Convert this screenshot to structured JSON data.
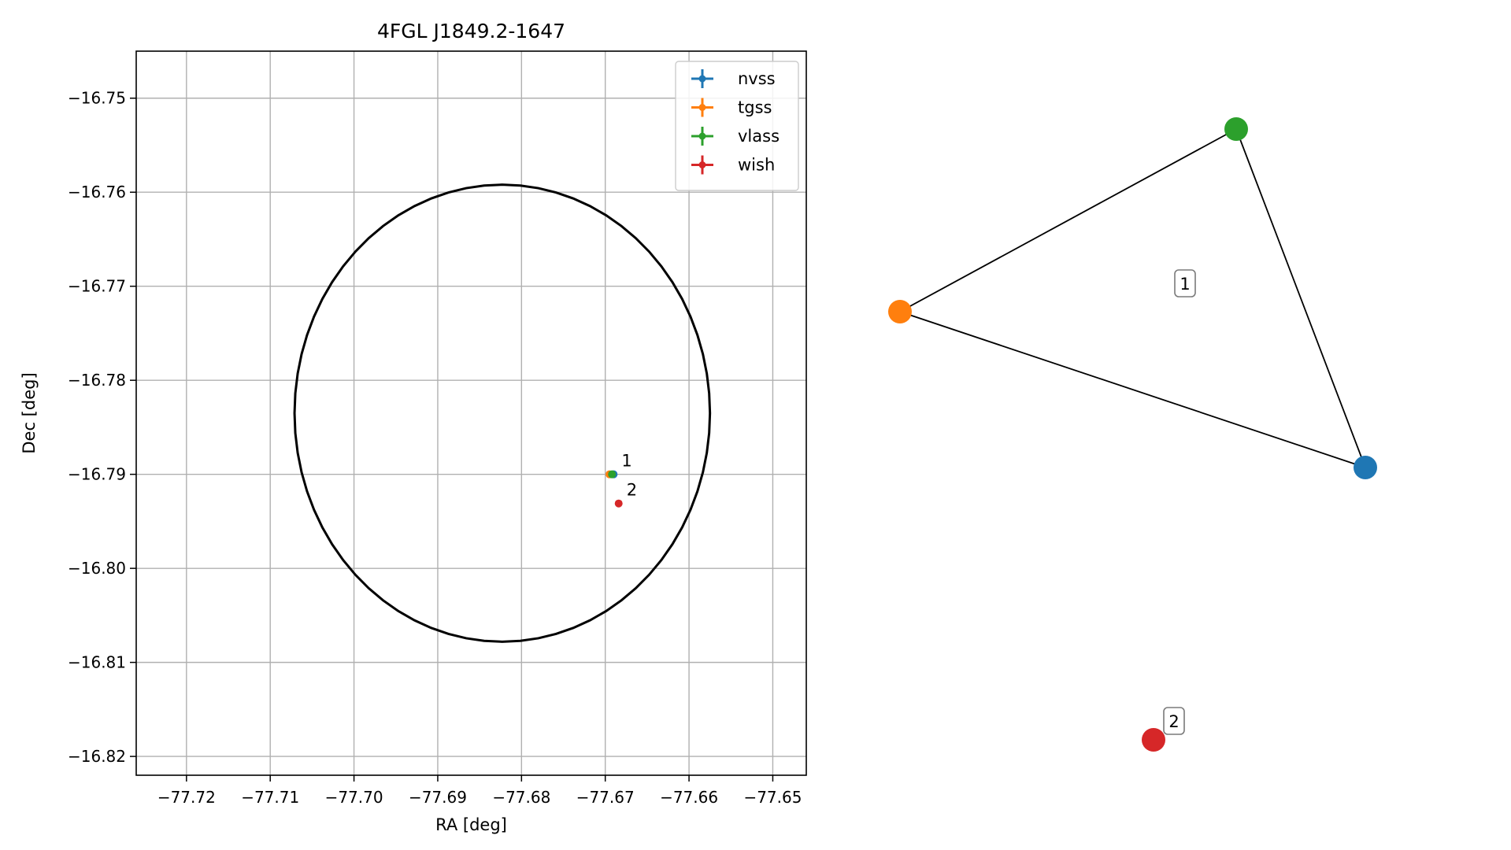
{
  "chart_data": [
    {
      "type": "scatter",
      "title": "4FGL J1849.2-1647",
      "xlabel": "RA [deg]",
      "ylabel": "Dec [deg]",
      "xlim": [
        -77.726,
        -77.646
      ],
      "ylim": [
        -16.822,
        -16.745
      ],
      "xticks": [
        -77.72,
        -77.71,
        -77.7,
        -77.69,
        -77.68,
        -77.67,
        -77.66,
        -77.65
      ],
      "xtick_labels": [
        "−77.72",
        "−77.71",
        "−77.70",
        "−77.69",
        "−77.68",
        "−77.67",
        "−77.66",
        "−77.65"
      ],
      "yticks": [
        -16.75,
        -16.76,
        -16.77,
        -16.78,
        -16.79,
        -16.8,
        -16.81,
        -16.82
      ],
      "ytick_labels": [
        "−16.75",
        "−16.76",
        "−16.77",
        "−16.78",
        "−16.79",
        "−16.80",
        "−16.81",
        "−16.82"
      ],
      "grid": true,
      "legend_position": "top-right",
      "ellipse": {
        "center": [
          -77.6823,
          -16.7835
        ],
        "ra_radius": 0.0248,
        "dec_radius": 0.0243,
        "color": "#000000"
      },
      "series": [
        {
          "name": "nvss",
          "color": "#1f77b4",
          "points": [
            {
              "x": -77.669,
              "y": -16.79
            }
          ]
        },
        {
          "name": "tgss",
          "color": "#ff7f0e",
          "points": [
            {
              "x": -77.6695,
              "y": -16.79
            }
          ]
        },
        {
          "name": "vlass",
          "color": "#2ca02c",
          "points": [
            {
              "x": -77.6692,
              "y": -16.79
            }
          ]
        },
        {
          "name": "wish",
          "color": "#d62728",
          "points": [
            {
              "x": -77.6684,
              "y": -16.7931
            }
          ]
        }
      ],
      "annotations": [
        {
          "text": "1",
          "x": -77.669,
          "y": -16.79
        },
        {
          "text": "2",
          "x": -77.6684,
          "y": -16.7931
        }
      ]
    },
    {
      "type": "network",
      "nodes": [
        {
          "id": "nvss",
          "color": "#1f77b4"
        },
        {
          "id": "tgss",
          "color": "#ff7f0e"
        },
        {
          "id": "vlass",
          "color": "#2ca02c"
        },
        {
          "id": "wish",
          "color": "#d62728"
        }
      ],
      "edges": [
        [
          "tgss",
          "vlass"
        ],
        [
          "vlass",
          "nvss"
        ],
        [
          "tgss",
          "nvss"
        ]
      ],
      "group_labels": [
        {
          "text": "1",
          "members": [
            "nvss",
            "tgss",
            "vlass"
          ]
        },
        {
          "text": "2",
          "members": [
            "wish"
          ]
        }
      ]
    }
  ]
}
